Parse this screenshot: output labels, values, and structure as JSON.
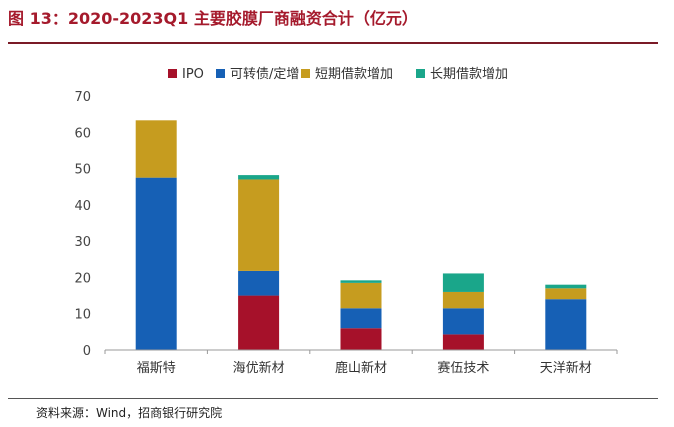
{
  "header": {
    "title": "图 13：2020-2023Q1 主要胶膜厂商融资合计（亿元）"
  },
  "footer": {
    "source": "资料来源：Wind，招商银行研究院"
  },
  "chart_data": {
    "type": "bar",
    "stacked": true,
    "title": "图 13：2020-2023Q1 主要胶膜厂商融资合计（亿元）",
    "xlabel": "",
    "ylabel": "",
    "ylim": [
      0,
      70
    ],
    "yticks": [
      "0",
      "10",
      "20",
      "30",
      "40",
      "50",
      "60",
      "70"
    ],
    "grid": false,
    "legend_position": "top-center",
    "categories": [
      "福斯特",
      "海优新材",
      "鹿山新材",
      "赛伍技术",
      "天洋新材"
    ],
    "series": [
      {
        "name": "IPO",
        "color": "#a6112a",
        "values": [
          0,
          15,
          6,
          4.3,
          0
        ]
      },
      {
        "name": "可转债/定增",
        "color": "#1660b5",
        "values": [
          47.5,
          6.8,
          5.5,
          7.2,
          14
        ]
      },
      {
        "name": "短期借款增加",
        "color": "#c69c1f",
        "values": [
          15.8,
          25.2,
          7,
          4.5,
          3
        ]
      },
      {
        "name": "长期借款增加",
        "color": "#1aa68a",
        "values": [
          0,
          1.2,
          0.7,
          5.1,
          1
        ]
      }
    ]
  }
}
